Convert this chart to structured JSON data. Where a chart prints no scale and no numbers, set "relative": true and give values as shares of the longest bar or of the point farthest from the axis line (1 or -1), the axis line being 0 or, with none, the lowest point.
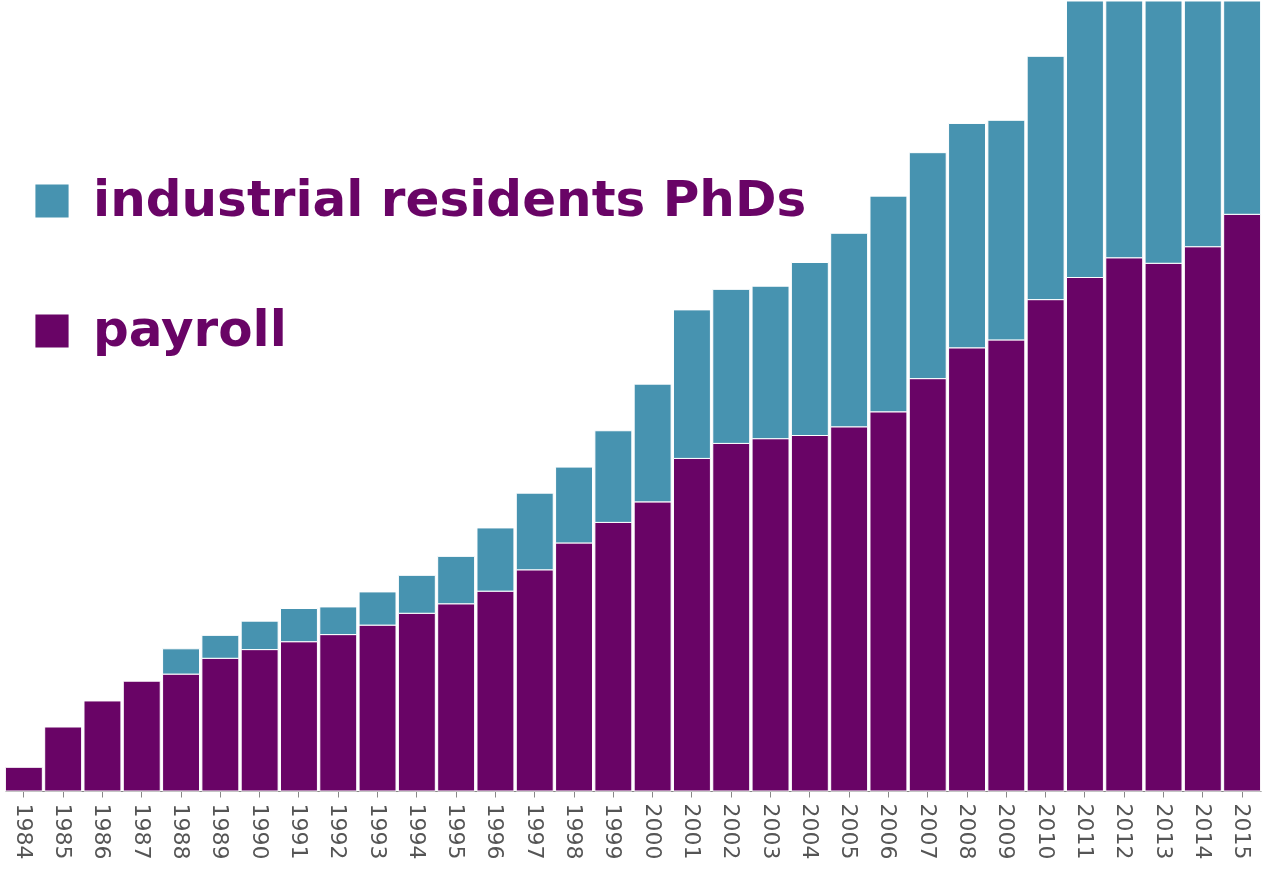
{
  "chart_data": {
    "type": "bar",
    "stacked": true,
    "relative": true,
    "legend": "top left",
    "categories": [
      "1984",
      "1985",
      "1986",
      "1987",
      "1988",
      "1989",
      "1990",
      "1991",
      "1992",
      "1993",
      "1994",
      "1995",
      "1996",
      "1997",
      "1998",
      "1999",
      "2000",
      "2001",
      "2002",
      "2003",
      "2004",
      "2005",
      "2006",
      "2007",
      "2008",
      "2009",
      "2010",
      "2011",
      "2012",
      "2013",
      "2014",
      "2015"
    ],
    "series": [
      {
        "name": "payroll",
        "color": "#690466",
        "values": [
          0.03,
          0.081,
          0.114,
          0.139,
          0.148,
          0.168,
          0.179,
          0.189,
          0.198,
          0.21,
          0.225,
          0.237,
          0.253,
          0.28,
          0.314,
          0.34,
          0.366,
          0.421,
          0.44,
          0.446,
          0.45,
          0.461,
          0.48,
          0.522,
          0.561,
          0.571,
          0.622,
          0.65,
          0.675,
          0.668,
          0.689,
          0.73
        ]
      },
      {
        "name": "industrial residents PhDs",
        "color": "#4793b0",
        "values": [
          null,
          null,
          null,
          null,
          0.032,
          0.029,
          0.036,
          0.042,
          0.035,
          0.042,
          0.048,
          0.06,
          0.08,
          0.097,
          0.096,
          0.116,
          0.149,
          0.188,
          0.195,
          0.193,
          0.219,
          0.245,
          0.273,
          0.286,
          0.284,
          0.278,
          0.308,
          0.35,
          0.325,
          0.332,
          0.311,
          0.27
        ]
      }
    ]
  }
}
